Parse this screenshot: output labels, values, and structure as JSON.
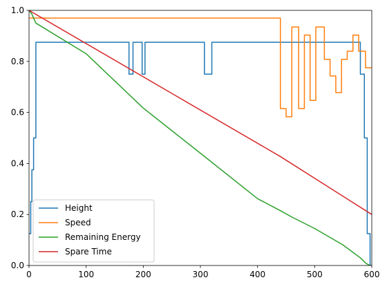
{
  "chart_data": {
    "type": "line",
    "title": "",
    "xlabel": "",
    "ylabel": "",
    "xlim": [
      0,
      600
    ],
    "ylim": [
      0,
      1
    ],
    "xticks": [
      "0",
      "100",
      "200",
      "300",
      "400",
      "500",
      "600"
    ],
    "yticks": [
      "0.0",
      "0.2",
      "0.4",
      "0.6",
      "0.8",
      "1.0"
    ],
    "grid": false,
    "legend_position": "lower-left",
    "series": [
      {
        "name": "Height",
        "color": "#1f77b4",
        "step": true,
        "points": [
          [
            0,
            0.125
          ],
          [
            3,
            0.25
          ],
          [
            5,
            0.375
          ],
          [
            8,
            0.5
          ],
          [
            12,
            0.875
          ],
          [
            175,
            0.75
          ],
          [
            182,
            0.875
          ],
          [
            198,
            0.75
          ],
          [
            203,
            0.875
          ],
          [
            307,
            0.75
          ],
          [
            320,
            0.875
          ],
          [
            580,
            0.75
          ],
          [
            587,
            0.5
          ],
          [
            592,
            0.125
          ],
          [
            597,
            0.0
          ],
          [
            600,
            0.0
          ]
        ]
      },
      {
        "name": "Speed",
        "color": "#ff7f0e",
        "step": true,
        "points": [
          [
            0,
            0.97
          ],
          [
            440,
            0.615
          ],
          [
            450,
            0.583
          ],
          [
            460,
            0.935
          ],
          [
            472,
            0.615
          ],
          [
            482,
            0.903
          ],
          [
            492,
            0.647
          ],
          [
            502,
            0.935
          ],
          [
            517,
            0.808
          ],
          [
            527,
            0.743
          ],
          [
            537,
            0.678
          ],
          [
            547,
            0.808
          ],
          [
            557,
            0.84
          ],
          [
            567,
            0.903
          ],
          [
            577,
            0.84
          ],
          [
            589,
            0.775
          ],
          [
            600,
            0.775
          ]
        ]
      },
      {
        "name": "Remaining Energy",
        "color": "#2ca02c",
        "step": false,
        "points": [
          [
            0,
            1.0
          ],
          [
            5,
            0.985
          ],
          [
            12,
            0.95
          ],
          [
            100,
            0.83
          ],
          [
            200,
            0.617
          ],
          [
            300,
            0.44
          ],
          [
            400,
            0.262
          ],
          [
            440,
            0.215
          ],
          [
            460,
            0.19
          ],
          [
            500,
            0.145
          ],
          [
            550,
            0.08
          ],
          [
            580,
            0.03
          ],
          [
            590,
            0.008
          ],
          [
            597,
            0.0
          ]
        ]
      },
      {
        "name": "Spare Time",
        "color": "#d62728",
        "step": false,
        "points": [
          [
            0,
            1.0
          ],
          [
            440,
            0.427
          ],
          [
            600,
            0.2
          ]
        ]
      }
    ]
  }
}
